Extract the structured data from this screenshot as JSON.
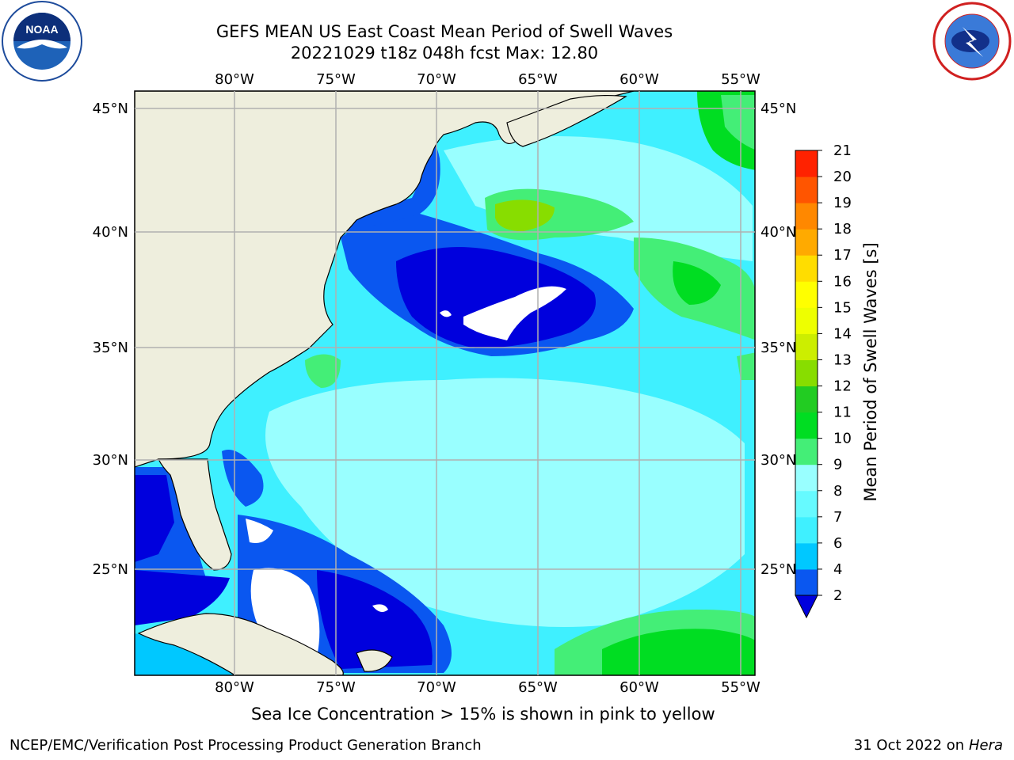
{
  "header": {
    "title_line1": "GEFS MEAN US East Coast Mean Period of Swell Waves",
    "title_line2": "20221029 t18z 048h fcst   Max: 12.80"
  },
  "map": {
    "lon_ticks": [
      "80°W",
      "75°W",
      "70°W",
      "65°W",
      "60°W",
      "55°W"
    ],
    "lat_ticks": [
      "45°N",
      "40°N",
      "35°N",
      "30°N",
      "25°N"
    ],
    "land_color": "#eeeedd",
    "grid_color": "#b0b0b0",
    "ice_note": "Sea Ice Concentration > 15% is shown in pink to yellow"
  },
  "colorbar": {
    "label": "Mean Period of Swell Waves [s]",
    "levels": [
      "2",
      "4",
      "6",
      "7",
      "8",
      "9",
      "10",
      "11",
      "12",
      "13",
      "14",
      "15",
      "16",
      "17",
      "18",
      "19",
      "20",
      "21"
    ],
    "colors": [
      "#0a57f0",
      "#00c8ff",
      "#3ff0ff",
      "#66faff",
      "#99ffff",
      "#44ee77",
      "#00dd22",
      "#22cc22",
      "#88dd00",
      "#ccee00",
      "#eeff00",
      "#ffff00",
      "#ffdd00",
      "#ffaa00",
      "#ff8800",
      "#ff5500",
      "#ff2200",
      "#ff0000"
    ],
    "extend_color": "#0000dd"
  },
  "logos": {
    "left_name": "NOAA",
    "right_name": "NATIONAL WEATHER SERVICE"
  },
  "footer": {
    "left": "NCEP/EMC/Verification Post Processing Product Generation Branch",
    "right_date": "31 Oct 2022 on",
    "right_host": "Hera"
  }
}
